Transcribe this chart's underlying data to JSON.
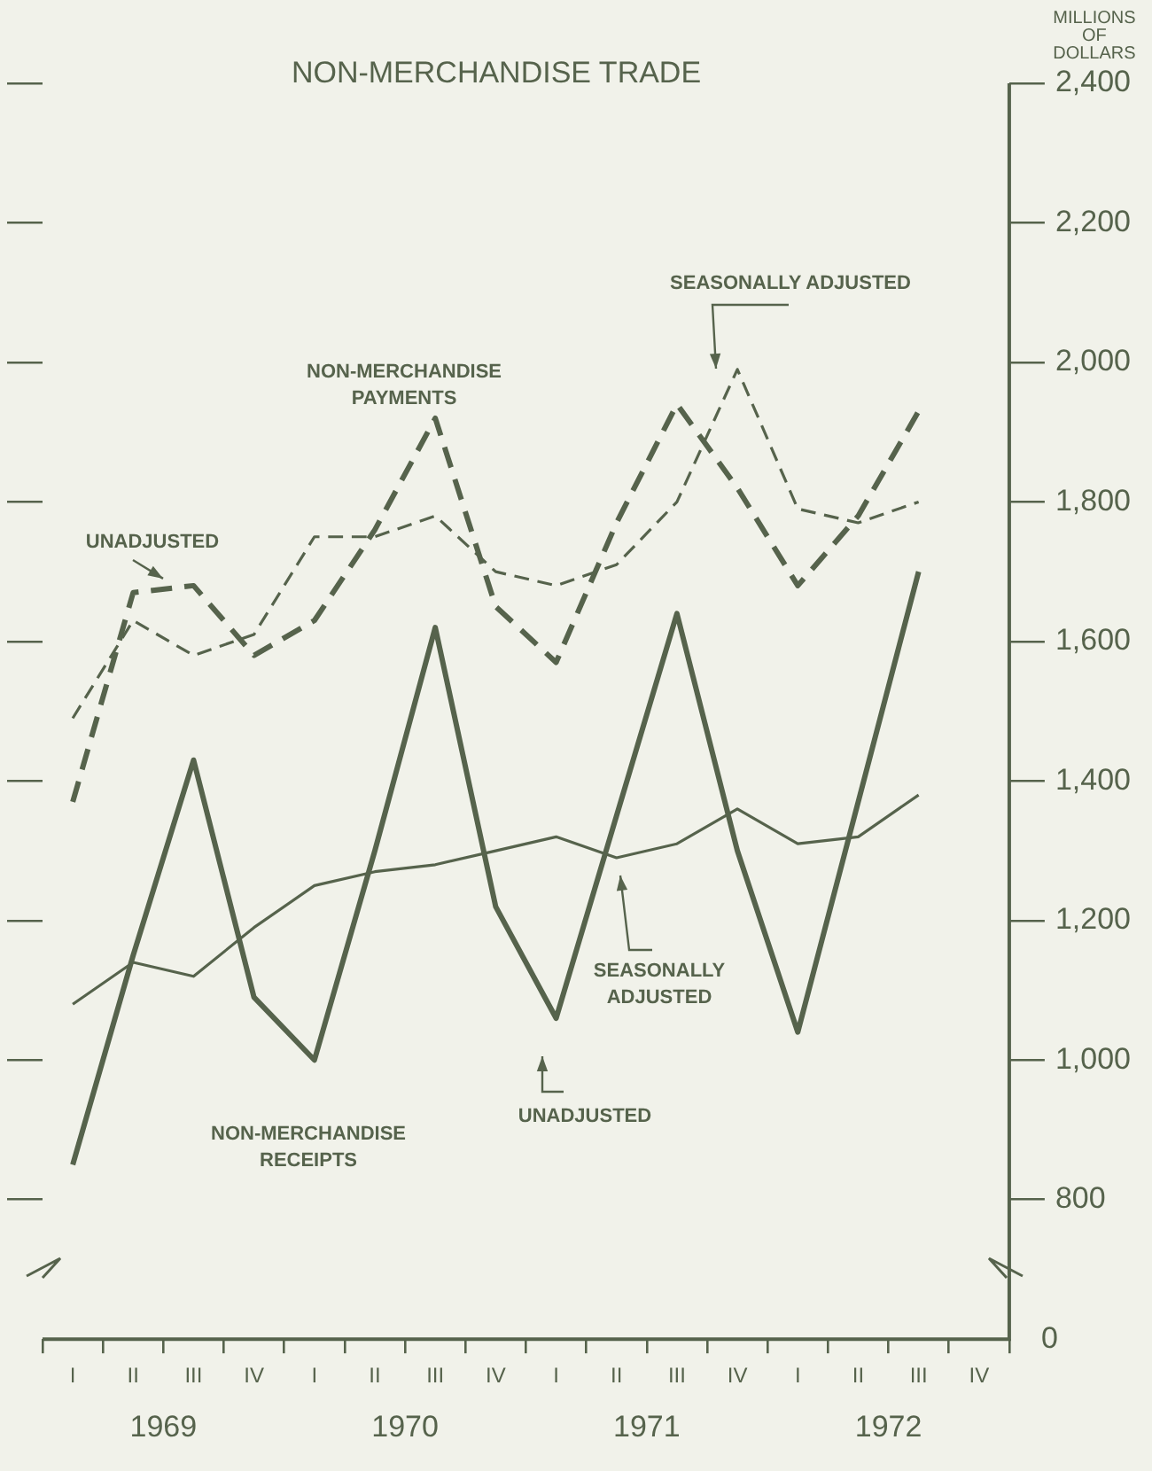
{
  "chart_data": {
    "type": "line",
    "title": "NON-MERCHANDISE TRADE",
    "ylabel": "MILLIONS OF DOLLARS",
    "categories": [
      "I",
      "II",
      "III",
      "IV",
      "I",
      "II",
      "III",
      "IV",
      "I",
      "II",
      "III",
      "IV",
      "I",
      "II",
      "III",
      "IV"
    ],
    "series": [
      {
        "color": "#56634c",
        "line_style": "dashed",
        "values": [
          1370,
          1670,
          1680,
          1580,
          1630,
          1760,
          1920,
          1650,
          1570,
          1770,
          1940,
          1820,
          1680,
          1780,
          1930,
          null
        ]
      },
      {
        "color": "#56634c",
        "line_style": "dashed",
        "values": [
          1490,
          1630,
          1580,
          1610,
          1750,
          1750,
          1780,
          1700,
          1680,
          1710,
          1800,
          1990,
          1790,
          1770,
          1800,
          null
        ]
      },
      {
        "color": "#56634c",
        "line_style": "solid",
        "values": [
          850,
          1150,
          1430,
          1090,
          1000,
          1300,
          1620,
          1220,
          1060,
          1350,
          1640,
          1300,
          1040,
          1370,
          1700,
          null
        ]
      },
      {
        "color": "#56634c",
        "line_style": "solid",
        "values": [
          1080,
          1140,
          1120,
          1190,
          1250,
          1270,
          1280,
          1300,
          1320,
          1290,
          1310,
          1360,
          1310,
          1320,
          1380,
          null
        ]
      }
    ],
    "ylim": [
      600,
      2400
    ],
    "yticks": [
      800,
      {
        "value": 1000,
        "label": "1,000"
      },
      {
        "value": 1200,
        "label": "1,200"
      },
      {
        "value": 1400,
        "label": "1,400"
      },
      {
        "value": 1600,
        "label": "1,600"
      },
      {
        "value": 1800,
        "label": "1,800"
      },
      {
        "value": 2000,
        "label": "2,000"
      },
      {
        "value": 2200,
        "label": "2,200"
      },
      {
        "value": 2400,
        "label": "2,400"
      }
    ],
    "grid": false,
    "legend": false,
    "marker": "none",
    "annotations": [
      "1969",
      "1970",
      "1971",
      "1972",
      "NON-MERCHANDISE PAYMENTS",
      {
        "text": "UNADJUSTED",
        "y": 1680
      },
      "SEASONALLY ADJUSTED",
      "SEASONALLY ADJUSTED",
      "UNADJUSTED",
      "NON-MERCHANDISE RECEIPTS",
      "0"
    ]
  }
}
